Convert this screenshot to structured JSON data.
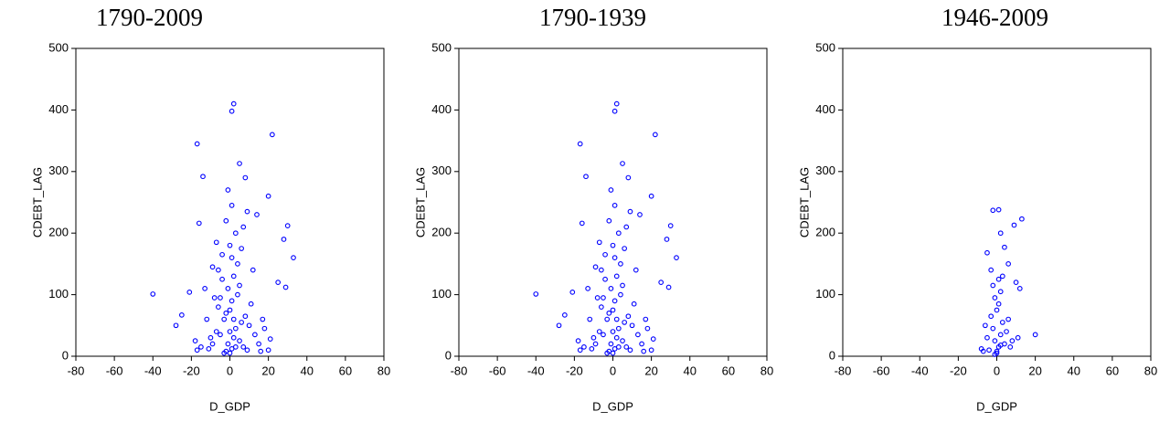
{
  "chart_data": [
    {
      "type": "scatter",
      "title": "1790-2009",
      "x_label": "D_GDP",
      "y_label": "CDEBT_LAG",
      "color": "#0000ff",
      "xlim": [
        -80,
        80
      ],
      "ylim": [
        0,
        500
      ],
      "xticks": [
        -80,
        -60,
        -40,
        -20,
        0,
        20,
        40,
        60,
        80
      ],
      "yticks": [
        0,
        100,
        200,
        300,
        400,
        500
      ],
      "x": [
        -40,
        -17,
        1,
        2,
        22,
        5,
        20,
        30,
        33,
        28,
        -14,
        -16,
        -28,
        -25,
        -21,
        29,
        25,
        8,
        0,
        1,
        -1,
        2,
        -2,
        3,
        -3,
        0,
        1,
        -1,
        2,
        4,
        -4,
        0,
        3,
        -2,
        1,
        -1,
        5,
        -5,
        6,
        -6,
        7,
        -7,
        8,
        -8,
        9,
        -9,
        10,
        -10,
        11,
        -11,
        12,
        -12,
        13,
        14,
        -13,
        15,
        -15,
        17,
        -17,
        18,
        20,
        21,
        16,
        -18,
        4,
        -4,
        6,
        -6,
        2,
        -2,
        0,
        3,
        -3,
        5,
        -5,
        7,
        -7,
        9,
        -9,
        1
      ],
      "values": [
        101,
        345,
        398,
        410,
        360,
        313,
        260,
        212,
        160,
        190,
        292,
        216,
        50,
        67,
        104,
        112,
        120,
        290,
        5,
        12,
        20,
        30,
        8,
        45,
        60,
        75,
        90,
        110,
        130,
        150,
        165,
        180,
        200,
        220,
        245,
        270,
        25,
        35,
        55,
        80,
        15,
        40,
        65,
        95,
        10,
        20,
        50,
        30,
        85,
        12,
        140,
        60,
        35,
        230,
        110,
        20,
        15,
        60,
        10,
        45,
        10,
        28,
        8,
        25,
        100,
        125,
        175,
        140,
        60,
        70,
        40,
        15,
        5,
        115,
        95,
        210,
        185,
        235,
        145,
        160
      ]
    },
    {
      "type": "scatter",
      "title": "1790-1939",
      "x_label": "D_GDP",
      "y_label": "CDEBT_LAG",
      "color": "#0000ff",
      "xlim": [
        -80,
        80
      ],
      "ylim": [
        0,
        500
      ],
      "xticks": [
        -80,
        -60,
        -40,
        -20,
        0,
        20,
        40,
        60,
        80
      ],
      "yticks": [
        0,
        100,
        200,
        300,
        400,
        500
      ],
      "x": [
        -40,
        -17,
        1,
        2,
        22,
        5,
        20,
        30,
        33,
        28,
        -14,
        -16,
        -28,
        -25,
        -21,
        29,
        25,
        8,
        0,
        1,
        -1,
        2,
        -2,
        3,
        -3,
        0,
        1,
        -1,
        2,
        4,
        -4,
        0,
        3,
        -2,
        1,
        -1,
        5,
        -5,
        6,
        -6,
        7,
        -7,
        8,
        -8,
        9,
        -9,
        10,
        -10,
        11,
        -11,
        12,
        -12,
        13,
        14,
        -13,
        15,
        -15,
        17,
        -17,
        18,
        20,
        21,
        16,
        -18,
        4,
        -4,
        6,
        -6,
        2,
        -2,
        0,
        3,
        -3,
        5,
        -5,
        7,
        -7,
        9,
        -9,
        1
      ],
      "values": [
        101,
        345,
        398,
        410,
        360,
        313,
        260,
        212,
        160,
        190,
        292,
        216,
        50,
        67,
        104,
        112,
        120,
        290,
        5,
        12,
        20,
        30,
        8,
        45,
        60,
        75,
        90,
        110,
        130,
        150,
        165,
        180,
        200,
        220,
        245,
        270,
        25,
        35,
        55,
        80,
        15,
        40,
        65,
        95,
        10,
        20,
        50,
        30,
        85,
        12,
        140,
        60,
        35,
        230,
        110,
        20,
        15,
        60,
        10,
        45,
        10,
        28,
        8,
        25,
        100,
        125,
        175,
        140,
        60,
        70,
        40,
        15,
        5,
        115,
        95,
        210,
        185,
        235,
        145,
        160
      ]
    },
    {
      "type": "scatter",
      "title": "1946-2009",
      "x_label": "D_GDP",
      "y_label": "CDEBT_LAG",
      "color": "#0000ff",
      "xlim": [
        -80,
        80
      ],
      "ylim": [
        0,
        500
      ],
      "xticks": [
        -80,
        -60,
        -40,
        -20,
        0,
        20,
        40,
        60,
        80
      ],
      "yticks": [
        0,
        100,
        200,
        300,
        400,
        500
      ],
      "x": [
        -2,
        1,
        13,
        9,
        2,
        4,
        -5,
        6,
        0,
        1,
        -1,
        2,
        -2,
        3,
        -3,
        0,
        1,
        -1,
        2,
        -2,
        4,
        -4,
        5,
        -5,
        6,
        -6,
        7,
        -7,
        8,
        10,
        12,
        -8,
        11,
        20,
        3,
        -3,
        0,
        1,
        -1,
        2
      ],
      "values": [
        237,
        238,
        223,
        213,
        200,
        177,
        168,
        150,
        5,
        15,
        25,
        35,
        45,
        55,
        65,
        75,
        85,
        95,
        105,
        115,
        20,
        10,
        40,
        30,
        60,
        50,
        15,
        8,
        25,
        120,
        110,
        12,
        30,
        35,
        130,
        140,
        8,
        125,
        3,
        18
      ]
    }
  ]
}
